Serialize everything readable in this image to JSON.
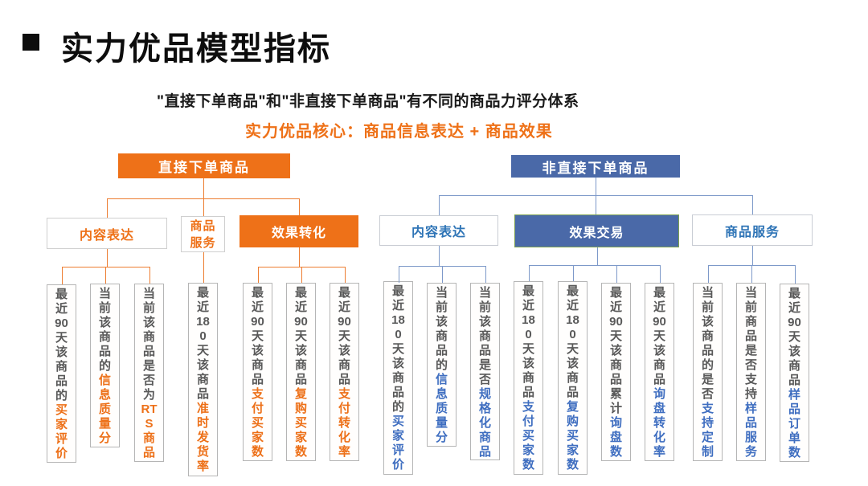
{
  "page": {
    "title": "实力优品模型指标",
    "subtitle": "\"直接下单商品\"和\"非直接下单商品\"有不同的商品力评分体系",
    "core_line": "实力优品核心：商品信息表达 + 商品效果"
  },
  "colors": {
    "orange": "#ee7118",
    "orange_line": "#ed7d31",
    "blue_fill": "#4a69a8",
    "blue_line": "#7d99c9",
    "blue_label": "#2e74b6",
    "blue_accent": "#3f6ec0",
    "leaf_plain_text": "#595959",
    "effect_trade_border": "#7ea24f",
    "leaf_border": "#b5b5b5"
  },
  "diagram": {
    "left_root": {
      "label": "直接下单商品"
    },
    "right_root": {
      "label": "非直接下单商品"
    },
    "left_children": [
      {
        "label": "内容表达"
      },
      {
        "label": "商品服务"
      },
      {
        "label": "效果转化"
      }
    ],
    "right_children": [
      {
        "label": "内容表达"
      },
      {
        "label": "效果交易"
      },
      {
        "label": "商品服务"
      }
    ],
    "leaves": [
      {
        "group": "直接下单商品-内容表达",
        "rows": [
          "最",
          "近",
          "90",
          "天",
          "该",
          "商",
          "品",
          "的"
        ],
        "accent": [
          "买",
          "家",
          "评",
          "价"
        ]
      },
      {
        "group": "直接下单商品-内容表达",
        "rows": [
          "当",
          "前",
          "该",
          "商",
          "品",
          "的"
        ],
        "accent": [
          "信",
          "息",
          "质",
          "量",
          "分"
        ]
      },
      {
        "group": "直接下单商品-内容表达",
        "rows": [
          "当",
          "前",
          "该",
          "商",
          "品",
          "是",
          "否",
          "为"
        ],
        "accent": [
          "RT",
          "S",
          "商",
          "品"
        ]
      },
      {
        "group": "直接下单商品-商品服务",
        "rows": [
          "最",
          "近",
          "18",
          "0",
          "天",
          "该",
          "商",
          "品"
        ],
        "accent": [
          "准",
          "时",
          "发",
          "货",
          "率"
        ]
      },
      {
        "group": "直接下单商品-效果转化",
        "rows": [
          "最",
          "近",
          "90",
          "天",
          "该",
          "商",
          "品"
        ],
        "accent": [
          "支",
          "付",
          "买",
          "家",
          "数"
        ]
      },
      {
        "group": "直接下单商品-效果转化",
        "rows": [
          "最",
          "近",
          "90",
          "天",
          "该",
          "商",
          "品"
        ],
        "accent": [
          "复",
          "购",
          "买",
          "家",
          "数"
        ]
      },
      {
        "group": "直接下单商品-效果转化",
        "rows": [
          "最",
          "近",
          "90",
          "天",
          "该",
          "商",
          "品"
        ],
        "accent": [
          "支",
          "付",
          "转",
          "化",
          "率"
        ]
      },
      {
        "group": "非直接下单商品-内容表达",
        "rows": [
          "最",
          "近",
          "18",
          "0",
          "天",
          "该",
          "商",
          "品",
          "的"
        ],
        "accent": [
          "买",
          "家",
          "评",
          "价"
        ]
      },
      {
        "group": "非直接下单商品-内容表达",
        "rows": [
          "当",
          "前",
          "该",
          "商",
          "品",
          "的"
        ],
        "accent": [
          "信",
          "息",
          "质",
          "量",
          "分"
        ]
      },
      {
        "group": "非直接下单商品-内容表达",
        "rows": [
          "当",
          "前",
          "该",
          "商",
          "品",
          "是",
          "否"
        ],
        "accent": [
          "规",
          "格",
          "化",
          "商",
          "品"
        ]
      },
      {
        "group": "非直接下单商品-效果交易",
        "rows": [
          "最",
          "近",
          "18",
          "0",
          "天",
          "该",
          "商",
          "品"
        ],
        "accent": [
          "支",
          "付",
          "买",
          "家",
          "数"
        ]
      },
      {
        "group": "非直接下单商品-效果交易",
        "rows": [
          "最",
          "近",
          "18",
          "0",
          "天",
          "该",
          "商",
          "品"
        ],
        "accent": [
          "复",
          "购",
          "买",
          "家",
          "数"
        ]
      },
      {
        "group": "非直接下单商品-效果交易",
        "rows": [
          "最",
          "近",
          "90",
          "天",
          "该",
          "商",
          "品",
          "累",
          "计"
        ],
        "accent": [
          "询",
          "盘",
          "数"
        ]
      },
      {
        "group": "非直接下单商品-效果交易",
        "rows": [
          "最",
          "近",
          "90",
          "天",
          "该",
          "商",
          "品"
        ],
        "accent": [
          "询",
          "盘",
          "转",
          "化",
          "率"
        ]
      },
      {
        "group": "非直接下单商品-商品服务",
        "rows": [
          "当",
          "前",
          "该",
          "商",
          "品",
          "的",
          "是",
          "否"
        ],
        "accent": [
          "支",
          "持",
          "定",
          "制"
        ]
      },
      {
        "group": "非直接下单商品-商品服务",
        "rows": [
          "当",
          "前",
          "商",
          "品",
          "是",
          "否",
          "支",
          "持"
        ],
        "accent": [
          "样",
          "品",
          "服",
          "务"
        ]
      },
      {
        "group": "非直接下单商品-商品服务",
        "rows": [
          "最",
          "近",
          "90",
          "天",
          "该",
          "商",
          "品"
        ],
        "accent": [
          "样",
          "品",
          "订",
          "单",
          "数"
        ]
      }
    ]
  }
}
